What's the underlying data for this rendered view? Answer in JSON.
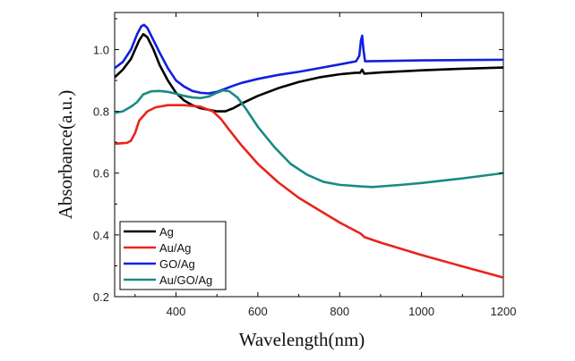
{
  "chart_data": {
    "type": "line",
    "title": "",
    "xlabel": "Wavelength(nm)",
    "ylabel": "Absorbance(a.u.)",
    "xlim": [
      250,
      1200
    ],
    "ylim": [
      0.2,
      1.12
    ],
    "x_ticks": [
      400,
      600,
      800,
      1000,
      1200
    ],
    "x_tick_labels": [
      "400",
      "600",
      "800",
      "1000",
      "1200"
    ],
    "y_ticks": [
      0.2,
      0.4,
      0.6,
      0.8,
      1.0
    ],
    "y_tick_labels": [
      "0.2",
      "0.4",
      "0.6",
      "0.8",
      "1.0"
    ],
    "grid": false,
    "legend_position": "bottom-left",
    "series": [
      {
        "name": "Ag",
        "color": "#000000",
        "points": [
          [
            250,
            0.91
          ],
          [
            270,
            0.935
          ],
          [
            290,
            0.97
          ],
          [
            310,
            1.03
          ],
          [
            320,
            1.05
          ],
          [
            330,
            1.04
          ],
          [
            345,
            1.0
          ],
          [
            360,
            0.95
          ],
          [
            380,
            0.9
          ],
          [
            400,
            0.86
          ],
          [
            420,
            0.835
          ],
          [
            440,
            0.82
          ],
          [
            460,
            0.81
          ],
          [
            480,
            0.805
          ],
          [
            500,
            0.8
          ],
          [
            520,
            0.8
          ],
          [
            540,
            0.81
          ],
          [
            560,
            0.825
          ],
          [
            600,
            0.85
          ],
          [
            650,
            0.875
          ],
          [
            700,
            0.895
          ],
          [
            750,
            0.91
          ],
          [
            800,
            0.92
          ],
          [
            840,
            0.925
          ],
          [
            850,
            0.925
          ],
          [
            855,
            0.935
          ],
          [
            860,
            0.922
          ],
          [
            900,
            0.926
          ],
          [
            1000,
            0.933
          ],
          [
            1100,
            0.938
          ],
          [
            1200,
            0.942
          ]
        ]
      },
      {
        "name": "Au/Ag",
        "color": "#e8241c",
        "points": [
          [
            250,
            0.695
          ],
          [
            270,
            0.697
          ],
          [
            280,
            0.698
          ],
          [
            290,
            0.705
          ],
          [
            300,
            0.73
          ],
          [
            310,
            0.77
          ],
          [
            330,
            0.8
          ],
          [
            350,
            0.813
          ],
          [
            380,
            0.82
          ],
          [
            420,
            0.82
          ],
          [
            460,
            0.815
          ],
          [
            490,
            0.8
          ],
          [
            510,
            0.775
          ],
          [
            530,
            0.74
          ],
          [
            560,
            0.69
          ],
          [
            600,
            0.63
          ],
          [
            650,
            0.57
          ],
          [
            700,
            0.52
          ],
          [
            750,
            0.48
          ],
          [
            800,
            0.44
          ],
          [
            850,
            0.405
          ],
          [
            855,
            0.4
          ],
          [
            860,
            0.393
          ],
          [
            900,
            0.375
          ],
          [
            1000,
            0.335
          ],
          [
            1100,
            0.298
          ],
          [
            1200,
            0.262
          ]
        ]
      },
      {
        "name": "GO/Ag",
        "color": "#1020e0",
        "points": [
          [
            250,
            0.94
          ],
          [
            270,
            0.96
          ],
          [
            290,
            1.0
          ],
          [
            305,
            1.05
          ],
          [
            315,
            1.075
          ],
          [
            322,
            1.08
          ],
          [
            330,
            1.07
          ],
          [
            345,
            1.03
          ],
          [
            360,
            0.99
          ],
          [
            380,
            0.94
          ],
          [
            400,
            0.9
          ],
          [
            420,
            0.88
          ],
          [
            440,
            0.866
          ],
          [
            460,
            0.86
          ],
          [
            480,
            0.858
          ],
          [
            500,
            0.863
          ],
          [
            520,
            0.873
          ],
          [
            540,
            0.883
          ],
          [
            560,
            0.892
          ],
          [
            600,
            0.905
          ],
          [
            650,
            0.918
          ],
          [
            700,
            0.928
          ],
          [
            750,
            0.94
          ],
          [
            800,
            0.952
          ],
          [
            840,
            0.962
          ],
          [
            848,
            0.98
          ],
          [
            852,
            1.03
          ],
          [
            855,
            1.045
          ],
          [
            858,
            1.0
          ],
          [
            862,
            0.962
          ],
          [
            900,
            0.963
          ],
          [
            1000,
            0.965
          ],
          [
            1100,
            0.966
          ],
          [
            1200,
            0.967
          ]
        ]
      },
      {
        "name": "Au/GO/Ag",
        "color": "#1a8a84",
        "points": [
          [
            250,
            0.795
          ],
          [
            270,
            0.8
          ],
          [
            290,
            0.815
          ],
          [
            305,
            0.83
          ],
          [
            320,
            0.855
          ],
          [
            340,
            0.865
          ],
          [
            360,
            0.866
          ],
          [
            380,
            0.863
          ],
          [
            400,
            0.857
          ],
          [
            420,
            0.85
          ],
          [
            440,
            0.845
          ],
          [
            460,
            0.843
          ],
          [
            480,
            0.848
          ],
          [
            500,
            0.86
          ],
          [
            515,
            0.868
          ],
          [
            530,
            0.865
          ],
          [
            550,
            0.845
          ],
          [
            570,
            0.81
          ],
          [
            600,
            0.75
          ],
          [
            640,
            0.685
          ],
          [
            680,
            0.63
          ],
          [
            720,
            0.595
          ],
          [
            760,
            0.572
          ],
          [
            800,
            0.562
          ],
          [
            850,
            0.557
          ],
          [
            880,
            0.555
          ],
          [
            950,
            0.562
          ],
          [
            1000,
            0.568
          ],
          [
            1100,
            0.583
          ],
          [
            1200,
            0.6
          ]
        ]
      }
    ]
  }
}
